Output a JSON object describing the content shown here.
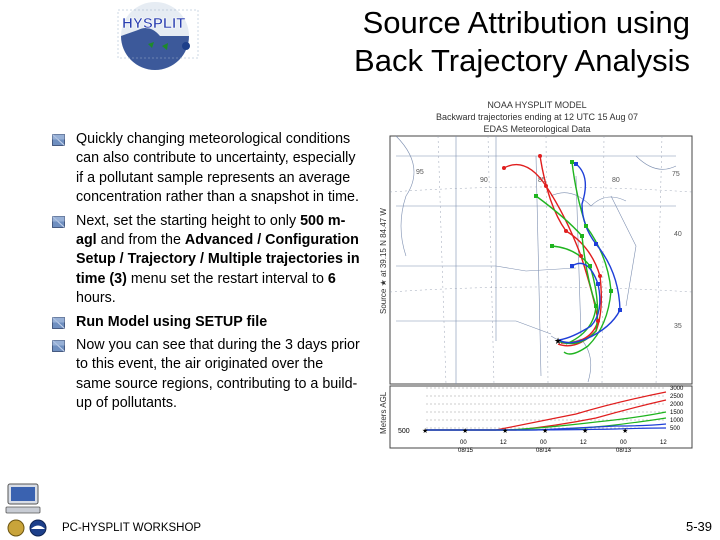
{
  "logo": {
    "text": "HYSPLIT"
  },
  "title": {
    "line1": "Source Attribution using",
    "line2": "Back Trajectory Analysis"
  },
  "bullets": [
    {
      "parts": [
        {
          "t": "Quickly changing meteorological conditions can also contribute to uncertainty, especially if a pollutant sample represents an average concentration rather than a snapshot in time.",
          "b": false
        }
      ]
    },
    {
      "parts": [
        {
          "t": "Next, set the starting height to only ",
          "b": false
        },
        {
          "t": "500 m-agl",
          "b": true
        },
        {
          "t": " and from the ",
          "b": false
        },
        {
          "t": "Advanced / Configuration Setup / Trajectory / Multiple trajectories in time (3)",
          "b": true
        },
        {
          "t": " menu set the restart interval to ",
          "b": false
        },
        {
          "t": "6",
          "b": true
        },
        {
          "t": " hours.",
          "b": false
        }
      ]
    },
    {
      "parts": [
        {
          "t": "Run Model using SETUP file",
          "b": true
        }
      ]
    },
    {
      "parts": [
        {
          "t": "Now you can see that during the 3 days prior to this event, the air originated over the same source regions, contributing to a build-up of pollutants.",
          "b": false
        }
      ]
    }
  ],
  "plot": {
    "header1": "NOAA HYSPLIT MODEL",
    "header2": "Backward trajectories ending at 12 UTC 15 Aug 07",
    "header3": "EDAS Meteorological Data",
    "side_label": "Source ★ at 39.15 N 84.47 W",
    "meters_label": "Meters AGL",
    "start_height": "500",
    "lon_labels": [
      "95",
      "90",
      "85",
      "80",
      "75"
    ],
    "lat_labels": [
      "40",
      "35"
    ],
    "height_ticks": [
      "3000",
      "2500",
      "2000",
      "1500",
      "1000",
      "500"
    ],
    "time_ticks": [
      "00",
      "12",
      "00",
      "12",
      "00",
      "12"
    ],
    "date_labels": [
      "08/15",
      "08/14",
      "08/13"
    ],
    "colors": {
      "red": "#e01e1e",
      "blue": "#1f3fd8",
      "green": "#1fb41f"
    }
  },
  "footer": {
    "left": "PC-HYSPLIT WORKSHOP",
    "right": "5-39"
  }
}
